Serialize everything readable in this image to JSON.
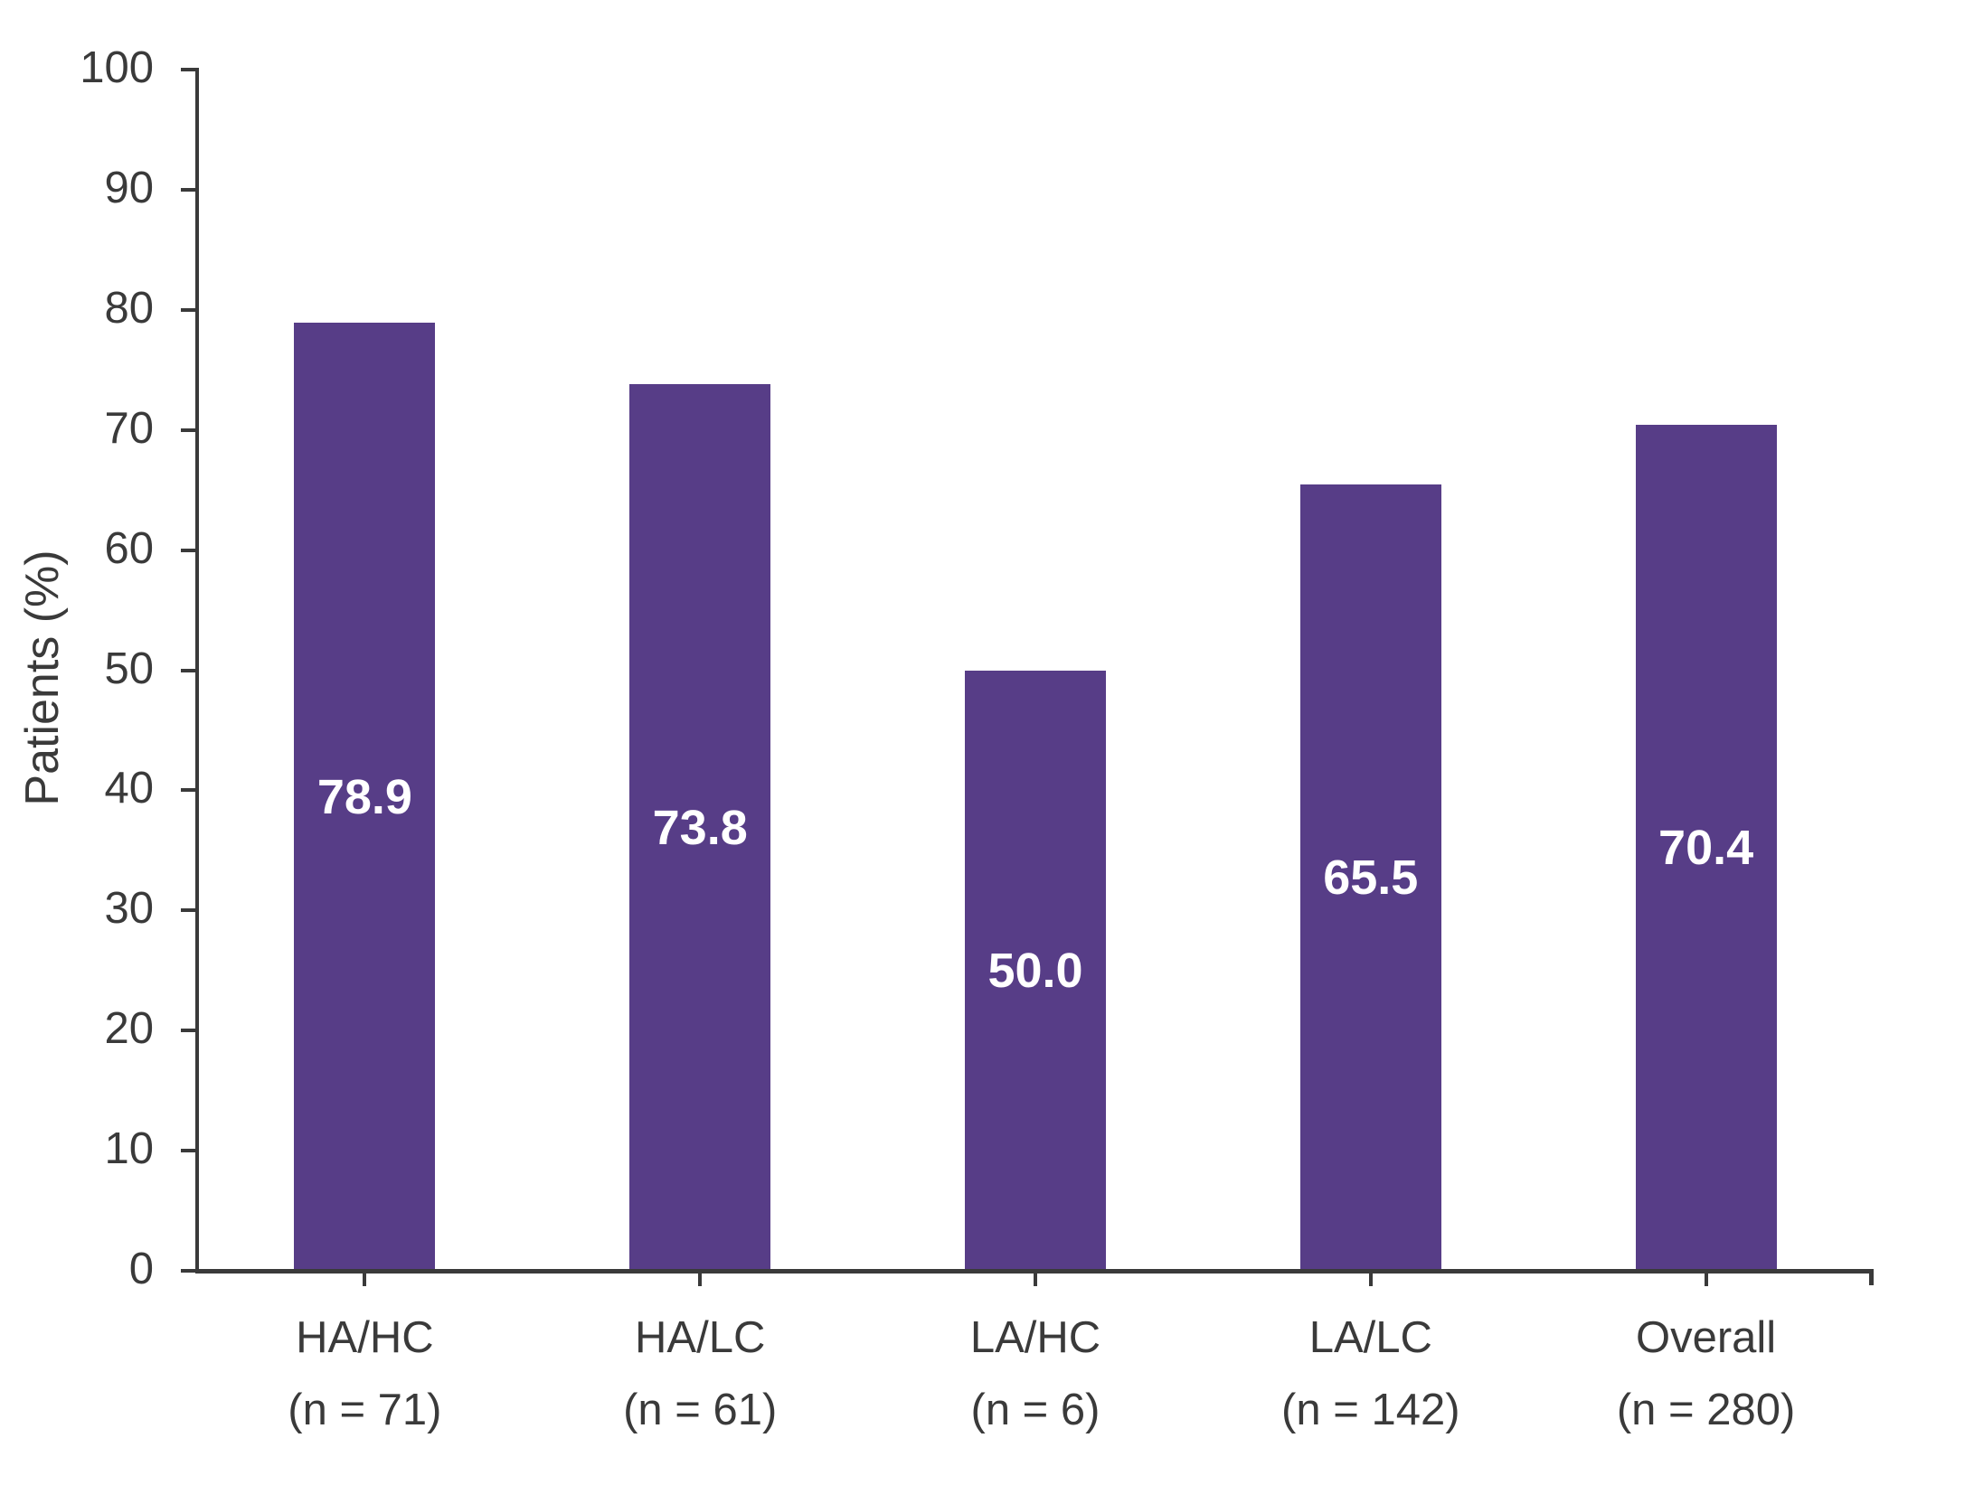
{
  "figure": {
    "background_color": "#ffffff",
    "axis_color": "#3a3a3a",
    "text_color": "#3a3a3a",
    "bar_color": "#573d87",
    "value_label_color": "#ffffff"
  },
  "chart_data": {
    "type": "bar",
    "title": "",
    "xlabel": "",
    "ylabel": "Patients (%)",
    "ylim": [
      0,
      100
    ],
    "yticks": [
      0,
      10,
      20,
      30,
      40,
      50,
      60,
      70,
      80,
      90,
      100
    ],
    "grid": false,
    "legend": null,
    "categories": [
      "HA/HC",
      "HA/LC",
      "LA/HC",
      "LA/LC",
      "Overall"
    ],
    "category_sublabels": [
      "(n = 71)",
      "(n = 61)",
      "(n = 6)",
      "(n = 142)",
      "(n = 280)"
    ],
    "values": [
      78.9,
      73.8,
      50.0,
      65.5,
      70.4
    ],
    "value_labels": [
      "78.9",
      "73.8",
      "50.0",
      "65.5",
      "70.4"
    ],
    "value_label_position": "centered-inside-bar"
  }
}
